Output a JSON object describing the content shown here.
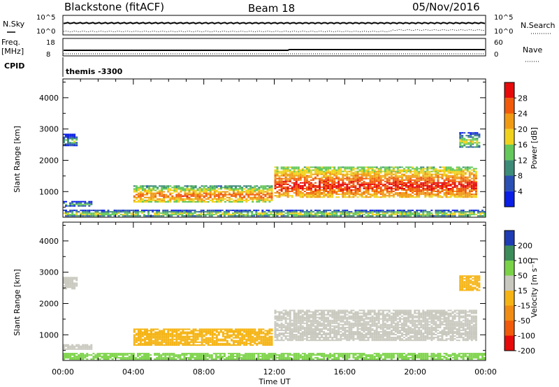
{
  "header": {
    "radar": "Blackstone (fitACF)",
    "beam": "Beam 18",
    "date": "05/Nov/2016"
  },
  "panels": {
    "nsky": {
      "left_label": "N.Sky",
      "left_ticks": [
        "10^5",
        "10^0"
      ],
      "right_label": "N.Search",
      "right_ticks": [
        "10^5",
        "10^0"
      ]
    },
    "freq": {
      "left_label_line1": "Freq.",
      "left_label_line2": "[MHz]",
      "left_ticks": [
        "18",
        "8"
      ],
      "right_label": "Nave",
      "right_ticks": [
        "60",
        "0"
      ]
    },
    "cpid": {
      "label": "CPID",
      "value": "themis -3300"
    }
  },
  "colors": {
    "power": [
      "#0a1ee6",
      "#2a50b4",
      "#3c8c78",
      "#64c85a",
      "#f0d21e",
      "#f09a14",
      "#f05a0a",
      "#e60a0a"
    ],
    "velocity": [
      "#e60a0a",
      "#f05a0a",
      "#f08c14",
      "#f5b414",
      "#c8c8be",
      "#7ad246",
      "#3c8c5a",
      "#1e3cb4"
    ]
  },
  "chart_data": [
    {
      "type": "heatmap",
      "name_panel": "power",
      "ylabel": "Slant Range [km]",
      "xlabel": "Time UT",
      "x_ticks": [
        "00:00",
        "04:00",
        "08:00",
        "12:00",
        "16:00",
        "20:00",
        "00:00"
      ],
      "x_range_hours": [
        0,
        24
      ],
      "y_ticks": [
        1000,
        2000,
        3000,
        4000
      ],
      "y_range_km": [
        180,
        4600
      ],
      "colorbar": {
        "label": "Power [dB]",
        "ticks": [
          "4",
          "8",
          "12",
          "16",
          "20",
          "24",
          "28"
        ],
        "range": [
          0,
          32
        ]
      },
      "regions": [
        {
          "t": [
            0.0,
            0.8
          ],
          "r": [
            2450,
            2850
          ],
          "value": 8
        },
        {
          "t": [
            0.0,
            1.6
          ],
          "r": [
            520,
            700
          ],
          "value": 8
        },
        {
          "t": [
            4.0,
            11.9
          ],
          "r": [
            650,
            1200
          ],
          "value": 20
        },
        {
          "t": [
            12.0,
            23.5
          ],
          "r": [
            800,
            1800
          ],
          "value": 24
        },
        {
          "t": [
            0.0,
            24.0
          ],
          "r": [
            200,
            420
          ],
          "value": 12
        },
        {
          "t": [
            22.5,
            23.6
          ],
          "r": [
            2400,
            2900
          ],
          "value": 12
        }
      ]
    },
    {
      "type": "heatmap",
      "name_panel": "velocity",
      "ylabel": "Slant Range [km]",
      "xlabel": "Time UT",
      "x_ticks": [
        "00:00",
        "04:00",
        "08:00",
        "12:00",
        "16:00",
        "20:00",
        "00:00"
      ],
      "x_range_hours": [
        0,
        24
      ],
      "y_ticks": [
        1000,
        2000,
        3000,
        4000
      ],
      "y_range_km": [
        180,
        4600
      ],
      "colorbar": {
        "label": "Velocity [m s⁻¹]",
        "ticks": [
          "200",
          "100",
          "50",
          "15",
          "-15",
          "-50",
          "-100",
          "-200"
        ],
        "range": [
          -250,
          250
        ]
      },
      "regions": [
        {
          "t": [
            0.0,
            0.8
          ],
          "r": [
            2450,
            2850
          ],
          "value": 0
        },
        {
          "t": [
            0.0,
            1.6
          ],
          "r": [
            520,
            700
          ],
          "value": 0
        },
        {
          "t": [
            4.0,
            11.9
          ],
          "r": [
            650,
            1200
          ],
          "value": -30
        },
        {
          "t": [
            12.0,
            23.5
          ],
          "r": [
            800,
            1800
          ],
          "value": 0
        },
        {
          "t": [
            0.0,
            24.0
          ],
          "r": [
            200,
            420
          ],
          "value": 30
        },
        {
          "t": [
            22.5,
            23.6
          ],
          "r": [
            2400,
            2900
          ],
          "value": -40
        }
      ]
    }
  ]
}
